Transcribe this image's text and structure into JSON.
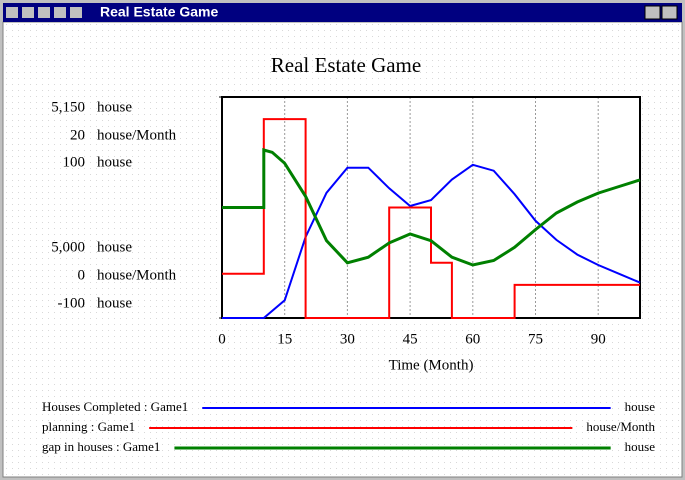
{
  "window_title": "Real Estate Game",
  "chart_data": {
    "type": "line",
    "title": "Real Estate Game",
    "xlabel": "Time (Month)",
    "xlim": [
      0,
      100
    ],
    "xticks": [
      0,
      15,
      30,
      45,
      60,
      75,
      90
    ],
    "grid": true,
    "series": [
      {
        "name": "Houses Completed : Game1",
        "unit": "house",
        "color": "#0000ff",
        "ylim": [
          5000,
          5150
        ],
        "yticks": [
          {
            "value": 5000,
            "label": "5,000"
          },
          {
            "value": 5150,
            "label": "5,150"
          }
        ],
        "x": [
          0,
          5,
          10,
          15,
          20,
          25,
          30,
          35,
          40,
          45,
          50,
          55,
          60,
          65,
          70,
          75,
          80,
          85,
          90,
          95,
          100
        ],
        "values": [
          5000,
          5000,
          5000,
          5012,
          5055,
          5085,
          5102,
          5102,
          5088,
          5076,
          5080,
          5094,
          5104,
          5100,
          5084,
          5066,
          5053,
          5043,
          5036,
          5030,
          5024
        ]
      },
      {
        "name": "planning : Game1",
        "unit": "house/Month",
        "color": "#ff0000",
        "ylim": [
          0,
          20
        ],
        "yticks": [
          0,
          20
        ],
        "x": [
          0,
          10,
          10,
          20,
          20,
          40,
          40,
          50,
          50,
          55,
          55,
          70,
          70,
          100
        ],
        "values": [
          4,
          4,
          18,
          18,
          0,
          0,
          10,
          10,
          5,
          5,
          0,
          0,
          3,
          3
        ]
      },
      {
        "name": "gap in houses : Game1",
        "unit": "house",
        "color": "#008000",
        "ylim": [
          -100,
          100
        ],
        "yticks": [
          -100,
          100
        ],
        "x": [
          0,
          10,
          10,
          12,
          15,
          20,
          25,
          30,
          35,
          40,
          45,
          50,
          55,
          60,
          65,
          70,
          75,
          80,
          85,
          90,
          95,
          100
        ],
        "values": [
          0,
          0,
          52,
          50,
          40,
          10,
          -30,
          -50,
          -45,
          -32,
          -24,
          -30,
          -45,
          -52,
          -48,
          -36,
          -20,
          -5,
          5,
          13,
          19,
          25
        ]
      }
    ]
  }
}
